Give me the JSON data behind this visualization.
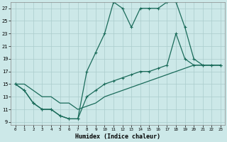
{
  "xlabel": "Humidex (Indice chaleur)",
  "background_color": "#cce8e8",
  "grid_color": "#aacccc",
  "line_color": "#1a6b5a",
  "xlim": [
    -0.5,
    23.5
  ],
  "ylim": [
    8.5,
    28.0
  ],
  "xticks": [
    0,
    1,
    2,
    3,
    4,
    5,
    6,
    7,
    8,
    9,
    10,
    11,
    12,
    13,
    14,
    15,
    16,
    17,
    18,
    19,
    20,
    21,
    22,
    23
  ],
  "yticks": [
    9,
    11,
    13,
    15,
    17,
    19,
    21,
    23,
    25,
    27
  ],
  "series1_x": [
    0,
    1,
    2,
    3,
    4,
    5,
    6,
    7,
    8,
    9,
    10,
    11,
    12,
    13,
    14,
    15,
    16,
    17,
    18,
    19,
    20,
    21,
    22,
    23
  ],
  "series1_y": [
    15,
    14,
    12,
    11,
    11,
    10,
    9.5,
    9.5,
    17,
    20,
    23,
    28,
    27,
    24,
    27,
    27,
    27,
    28,
    28,
    24,
    19,
    18,
    18,
    18
  ],
  "series2_x": [
    0,
    1,
    2,
    3,
    4,
    5,
    6,
    7,
    8,
    9,
    10,
    11,
    12,
    13,
    14,
    15,
    16,
    17,
    18,
    19,
    20,
    21,
    22,
    23
  ],
  "series2_y": [
    15,
    14,
    12,
    11,
    11,
    10,
    9.5,
    9.5,
    13,
    14,
    15,
    15.5,
    16,
    16.5,
    17,
    17,
    17.5,
    18,
    23,
    19,
    18,
    18,
    18,
    18
  ],
  "series3_x": [
    0,
    1,
    2,
    3,
    4,
    5,
    6,
    7,
    8,
    9,
    10,
    11,
    12,
    13,
    14,
    15,
    16,
    17,
    18,
    19,
    20,
    21,
    22,
    23
  ],
  "series3_y": [
    15,
    15,
    14,
    13,
    13,
    12,
    12,
    11,
    11.5,
    12,
    13,
    13.5,
    14,
    14.5,
    15,
    15.5,
    16,
    16.5,
    17,
    17.5,
    18,
    18,
    18,
    18
  ]
}
